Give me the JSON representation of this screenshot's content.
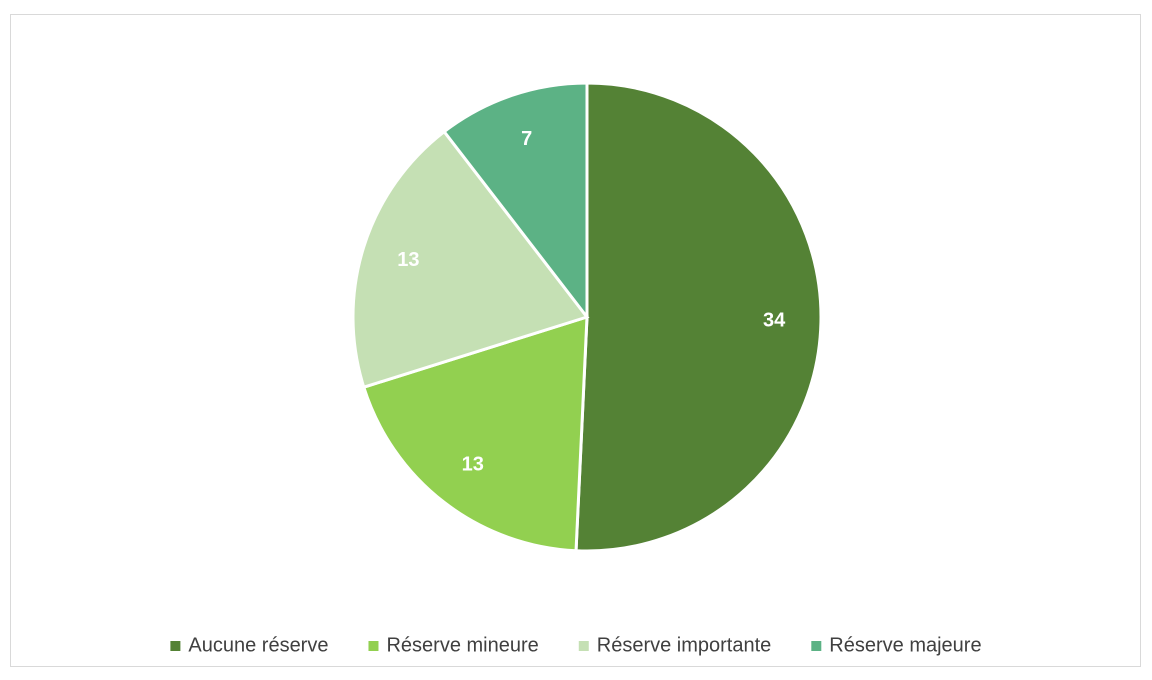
{
  "chart_data": {
    "type": "pie",
    "categories": [
      "Aucune réserve",
      "Réserve mineure",
      "Réserve importante",
      "Réserve majeure"
    ],
    "values": [
      34,
      13,
      13,
      7
    ],
    "colors": [
      "#548235",
      "#92d050",
      "#c5e0b4",
      "#5cb285"
    ],
    "legend": "bottom"
  }
}
